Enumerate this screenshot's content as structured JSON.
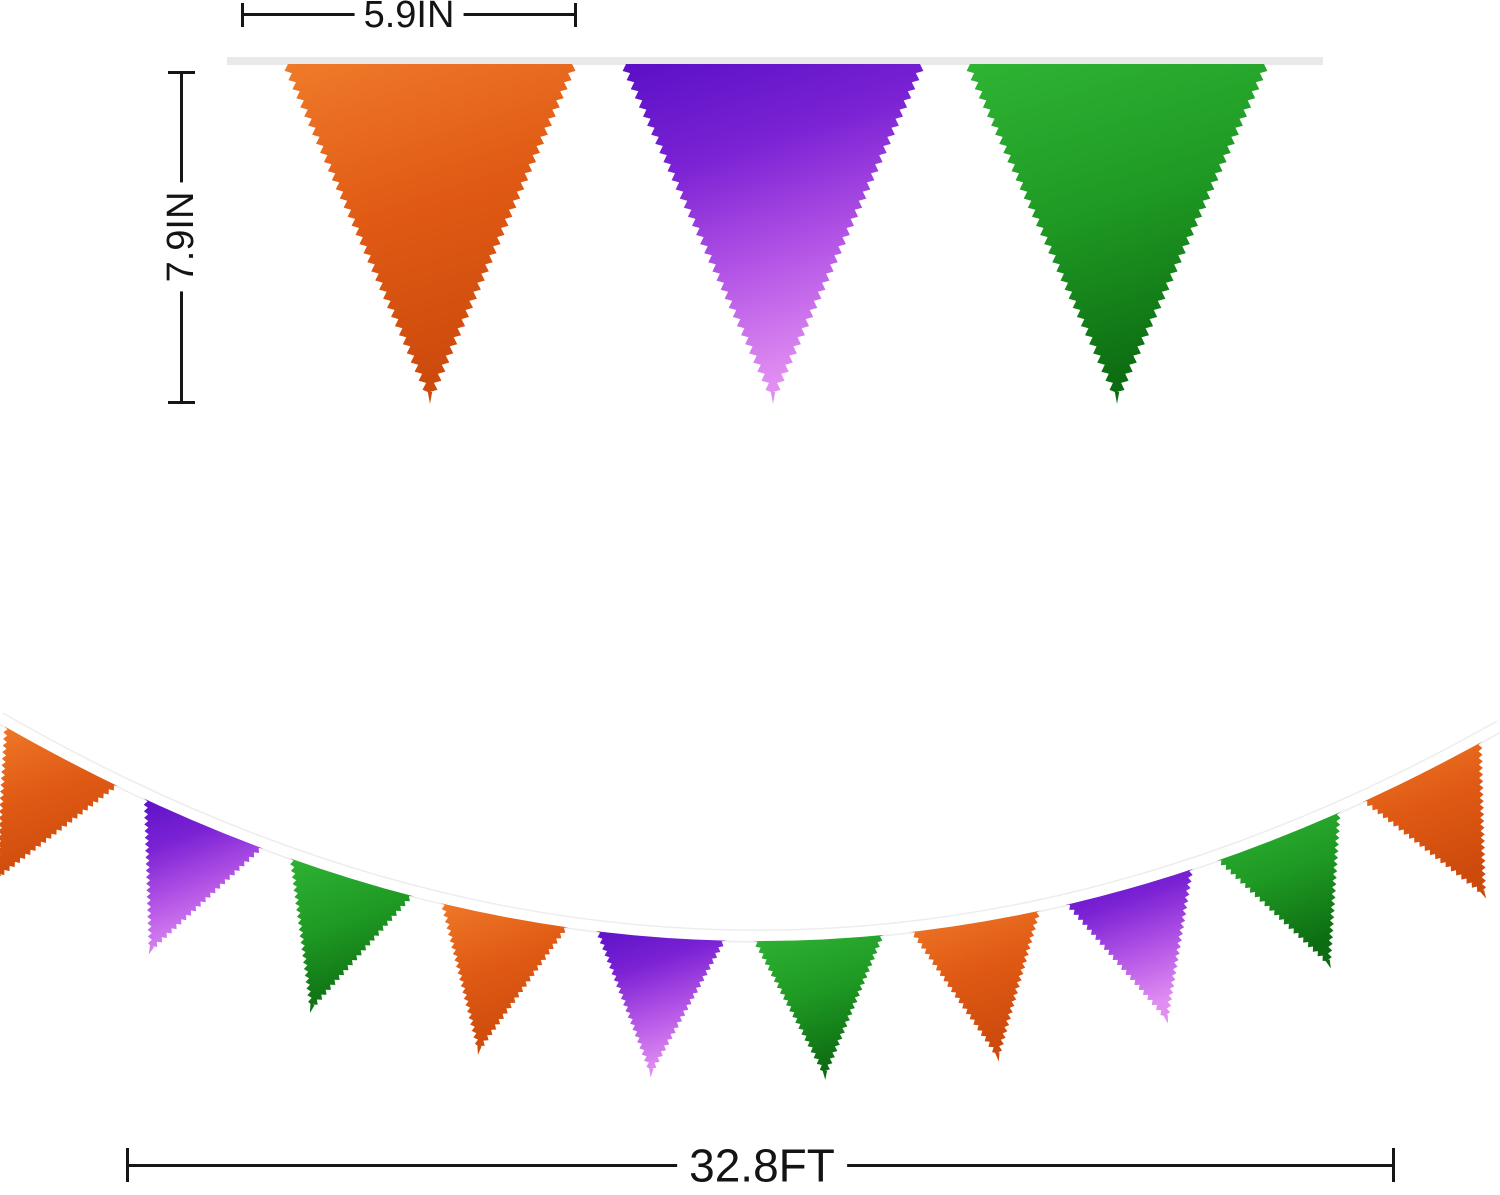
{
  "image_type": "product-dimension-illustration",
  "product": "metallic foil triangle pennant banner",
  "dimensions": {
    "flag_width_label": "5.9IN",
    "flag_height_label": "7.9IN",
    "banner_length_label": "32.8FT"
  },
  "top_banner": {
    "flag_colors": [
      "orange",
      "purple",
      "green"
    ]
  },
  "garland": {
    "flag_colors": [
      "orange",
      "purple",
      "green",
      "orange",
      "purple",
      "green",
      "orange",
      "purple",
      "green",
      "orange"
    ]
  },
  "palette": {
    "orange": [
      "#ef7a2a",
      "#e05a14",
      "#cc4a0c"
    ],
    "purple": [
      "#5a10c6",
      "#7b22d4",
      "#b455e6",
      "#e18ef2"
    ],
    "green": [
      "#2fb434",
      "#1f9a24",
      "#0d6c11"
    ],
    "string_bar": "#e9e9e9",
    "string_under": "#ededed",
    "string_over": "#ffffff",
    "dimension_color": "#161616"
  }
}
